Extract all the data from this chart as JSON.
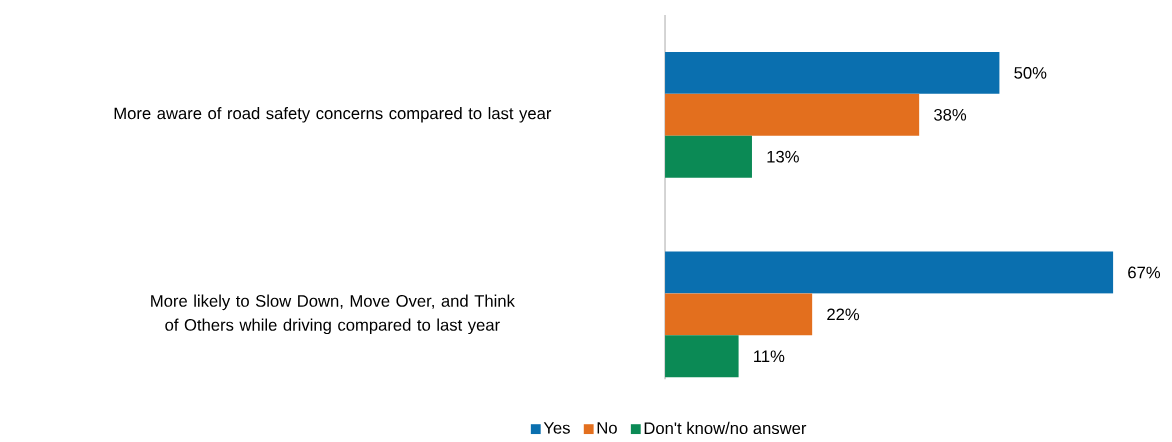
{
  "chart_data": {
    "type": "bar",
    "orientation": "horizontal",
    "categories": [
      "More aware of road safety concerns compared to last year",
      "More likely to Slow Down, Move Over, and Think of Others while driving compared to last year"
    ],
    "series": [
      {
        "name": "Yes",
        "color": "#0a6faf",
        "values": [
          50,
          67
        ],
        "value_labels": [
          "50%",
          "67%"
        ]
      },
      {
        "name": "No",
        "color": "#e36f1e",
        "values": [
          38,
          22
        ],
        "value_labels": [
          "38%",
          "22%"
        ]
      },
      {
        "name": "Don't know/no answer",
        "color": "#0b8a55",
        "values": [
          13,
          11
        ],
        "value_labels": [
          "13%",
          "11%"
        ]
      }
    ],
    "legend": "bottom"
  }
}
